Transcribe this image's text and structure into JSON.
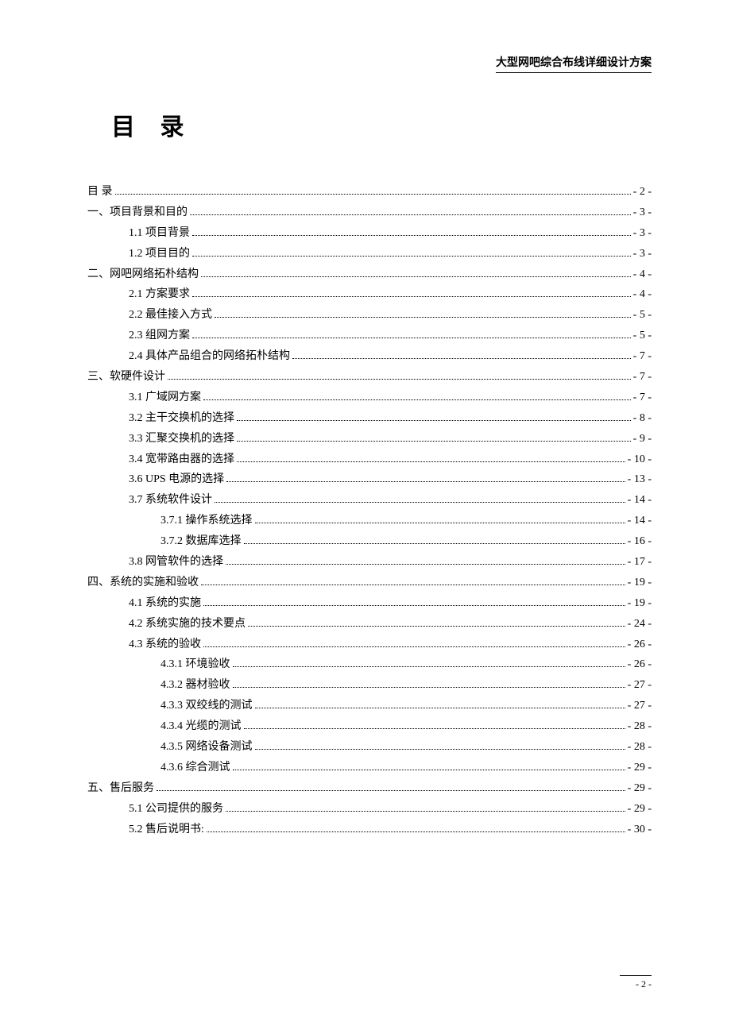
{
  "header": {
    "right_text": "大型网吧综合布线详细设计方案"
  },
  "title": "目 录",
  "footer": {
    "page_number": "- 2 -"
  },
  "toc": {
    "entries": [
      {
        "label": "目 录",
        "page": "- 2 -",
        "indent": 0
      },
      {
        "label": "一、项目背景和目的",
        "page": "- 3 -",
        "indent": 0
      },
      {
        "label": "1.1 项目背景",
        "page": "- 3 -",
        "indent": 1
      },
      {
        "label": "1.2 项目目的",
        "page": "- 3 -",
        "indent": 1
      },
      {
        "label": "二、网吧网络拓朴结构",
        "page": "- 4 -",
        "indent": 0
      },
      {
        "label": "2.1 方案要求",
        "page": "- 4 -",
        "indent": 1
      },
      {
        "label": "2.2 最佳接入方式",
        "page": "- 5 -",
        "indent": 1
      },
      {
        "label": "2.3 组网方案",
        "page": "- 5 -",
        "indent": 1
      },
      {
        "label": "2.4 具体产品组合的网络拓朴结构",
        "page": "- 7 -",
        "indent": 1
      },
      {
        "label": "三、软硬件设计",
        "page": "- 7 -",
        "indent": 0
      },
      {
        "label": "3.1 广域网方案",
        "page": "- 7 -",
        "indent": 1
      },
      {
        "label": "3.2 主干交换机的选择",
        "page": "- 8 -",
        "indent": 1
      },
      {
        "label": "3.3 汇聚交换机的选择",
        "page": "- 9 -",
        "indent": 1
      },
      {
        "label": "3.4 宽带路由器的选择",
        "page": "- 10 -",
        "indent": 1
      },
      {
        "label": "3.6   UPS 电源的选择",
        "page": "- 13 -",
        "indent": 1
      },
      {
        "label": "3.7 系统软件设计",
        "page": "- 14 -",
        "indent": 1
      },
      {
        "label": "3.7.1 操作系统选择",
        "page": "- 14 -",
        "indent": 2
      },
      {
        "label": "3.7.2 数据库选择",
        "page": "- 16 -",
        "indent": 2
      },
      {
        "label": "3.8 网管软件的选择",
        "page": "- 17 -",
        "indent": 1
      },
      {
        "label": "四、系统的实施和验收",
        "page": "- 19 -",
        "indent": 0
      },
      {
        "label": "4.1 系统的实施",
        "page": "- 19 -",
        "indent": 1
      },
      {
        "label": "4.2 系统实施的技术要点",
        "page": "- 24 -",
        "indent": 1
      },
      {
        "label": "4.3 系统的验收",
        "page": "- 26 -",
        "indent": 1
      },
      {
        "label": "4.3.1 环境验收",
        "page": "- 26 -",
        "indent": 2
      },
      {
        "label": "4.3.2 器材验收",
        "page": "- 27 -",
        "indent": 2
      },
      {
        "label": "4.3.3 双绞线的测试",
        "page": "- 27 -",
        "indent": 2
      },
      {
        "label": "4.3.4 光缆的测试",
        "page": "- 28 -",
        "indent": 2
      },
      {
        "label": "4.3.5 网络设备测试",
        "page": "- 28 -",
        "indent": 2
      },
      {
        "label": "4.3.6 综合测试",
        "page": "- 29 -",
        "indent": 2
      },
      {
        "label": "五、售后服务",
        "page": "- 29 -",
        "indent": 0
      },
      {
        "label": "5.1 公司提供的服务",
        "page": "- 29 -",
        "indent": 1
      },
      {
        "label": "5.2 售后说明书:",
        "page": "- 30 -",
        "indent": 1
      }
    ]
  }
}
